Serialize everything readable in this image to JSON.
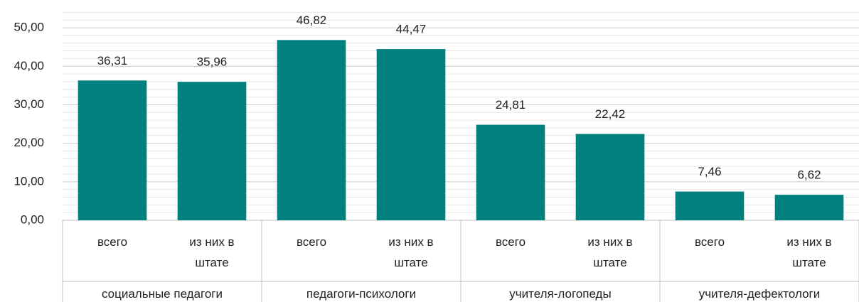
{
  "chart_data": {
    "type": "bar",
    "categories": [
      "всего",
      "из них в штате",
      "всего",
      "из них в штате",
      "всего",
      "из них в штате",
      "всего",
      "из них в штате"
    ],
    "groups": [
      "социальные педагоги",
      "педагоги-психологи",
      "учителя-логопеды",
      "учителя-дефектологи"
    ],
    "values": [
      36.31,
      35.96,
      46.82,
      44.47,
      24.81,
      22.42,
      7.46,
      6.62
    ],
    "value_labels": [
      "36,31",
      "35,96",
      "46,82",
      "44,47",
      "24,81",
      "22,42",
      "7,46",
      "6,62"
    ],
    "color": "#00807f",
    "ylim": [
      0,
      55
    ],
    "yticks": [
      {
        "value": 0,
        "label": "0,00"
      },
      {
        "value": 10,
        "label": "10,00"
      },
      {
        "value": 20,
        "label": "20,00"
      },
      {
        "value": 30,
        "label": "30,00"
      },
      {
        "value": 40,
        "label": "40,00"
      },
      {
        "value": 50,
        "label": "50,00"
      }
    ],
    "grid": true,
    "minor_grid_step": 2
  }
}
